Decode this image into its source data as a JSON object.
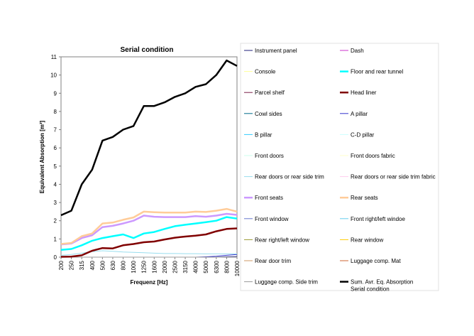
{
  "chart_data": {
    "type": "line",
    "title": "Serial condition",
    "xlabel": "Frequenz [Hz]",
    "ylabel": "Equivalent Absorption [m²]",
    "x": [
      "200",
      "250",
      "315",
      "400",
      "500",
      "630",
      "800",
      "1000",
      "1250",
      "1600",
      "2000",
      "2500",
      "3150",
      "4000",
      "5000",
      "6300",
      "8000",
      "10000"
    ],
    "ylim": [
      0,
      11
    ],
    "yticks": [
      "0",
      "1",
      "2",
      "3",
      "4",
      "5",
      "6",
      "7",
      "8",
      "9",
      "10",
      "11"
    ],
    "grid": false,
    "legend_position": "right",
    "series": [
      {
        "name": "Instrument panel",
        "color": "#1f1f7a",
        "width": 1,
        "values": [
          0,
          0,
          0,
          0,
          0,
          0,
          0,
          0,
          0,
          0,
          0,
          0,
          0,
          0,
          0,
          0,
          0.02,
          0.03
        ]
      },
      {
        "name": "Dash",
        "color": "#cc33cc",
        "width": 1,
        "values": [
          0,
          0,
          0,
          0,
          0,
          0,
          0,
          0,
          0,
          0,
          0,
          0,
          0,
          0,
          0,
          0,
          0,
          0
        ]
      },
      {
        "name": "Console",
        "color": "#ffff99",
        "width": 1,
        "values": [
          0,
          0,
          0,
          0,
          0,
          0,
          0,
          0,
          0,
          0,
          0,
          0,
          0,
          0,
          0,
          0,
          0,
          0
        ]
      },
      {
        "name": "Floor and rear tunnel",
        "color": "#00ffff",
        "width": 2.5,
        "values": [
          0.4,
          0.45,
          0.65,
          0.9,
          1.05,
          1.15,
          1.25,
          1.05,
          1.3,
          1.38,
          1.55,
          1.7,
          1.78,
          1.85,
          1.92,
          2.0,
          2.2,
          2.12
        ]
      },
      {
        "name": "Parcel shelf",
        "color": "#7a1f4a",
        "width": 1,
        "values": [
          0,
          0,
          0,
          0,
          0,
          0,
          0,
          0,
          0,
          0,
          0,
          0,
          0,
          0,
          0,
          0,
          0,
          0
        ]
      },
      {
        "name": "Head liner",
        "color": "#800000",
        "width": 2.5,
        "values": [
          0.02,
          0.03,
          0.1,
          0.35,
          0.5,
          0.48,
          0.65,
          0.72,
          0.82,
          0.86,
          0.97,
          1.07,
          1.13,
          1.18,
          1.25,
          1.42,
          1.55,
          1.58
        ]
      },
      {
        "name": "Cowl sides",
        "color": "#006a8a",
        "width": 1,
        "values": [
          0,
          0,
          0,
          0,
          0,
          0,
          0,
          0,
          0,
          0,
          0,
          0,
          0,
          0,
          0,
          0,
          0,
          0
        ]
      },
      {
        "name": "A pillar",
        "color": "#3333cc",
        "width": 1,
        "values": [
          0,
          0,
          0,
          0,
          0,
          0,
          0,
          0,
          0,
          0,
          0,
          0,
          0,
          0,
          0.02,
          0.05,
          0.1,
          0.15
        ]
      },
      {
        "name": "B pillar",
        "color": "#33ccff",
        "width": 1,
        "values": [
          0,
          0,
          0,
          0,
          0,
          0,
          0,
          0,
          0,
          0,
          0,
          0,
          0,
          0,
          0,
          0,
          0,
          0
        ]
      },
      {
        "name": "C-D pillar",
        "color": "#ccffff",
        "width": 1,
        "values": [
          0,
          0,
          0,
          0,
          0,
          0,
          0,
          0,
          0,
          0,
          0,
          0,
          0,
          0,
          0,
          0,
          0,
          0
        ]
      },
      {
        "name": "Front doors",
        "color": "#ccffee",
        "width": 1,
        "values": [
          0,
          0,
          0,
          0,
          0,
          0,
          0,
          0,
          0,
          0,
          0,
          0,
          0,
          0,
          0,
          0,
          0,
          0
        ]
      },
      {
        "name": "Front doors fabric",
        "color": "#ffffcc",
        "width": 1,
        "values": [
          0,
          0,
          0,
          0,
          0,
          0,
          0,
          0,
          0,
          0,
          0,
          0,
          0,
          0,
          0,
          0,
          0,
          0
        ]
      },
      {
        "name": "Rear doors or rear side trim",
        "color": "#99ddee",
        "width": 1,
        "values": [
          0.1,
          0.15,
          0.22,
          0.3,
          0.35,
          0.32,
          0.28,
          0.26,
          0.24,
          0.22,
          0.2,
          0.2,
          0.19,
          0.19,
          0.18,
          0.18,
          0.18,
          0.18
        ]
      },
      {
        "name": "Rear doors or rear side trim fabric",
        "color": "#ffccee",
        "width": 1,
        "values": [
          0,
          0,
          0,
          0,
          0,
          0,
          0,
          0,
          0,
          0,
          0,
          0,
          0,
          0,
          0,
          0,
          0,
          0
        ]
      },
      {
        "name": "Front seats",
        "color": "#cc99ff",
        "width": 2.5,
        "values": [
          0.7,
          0.75,
          1.05,
          1.2,
          1.65,
          1.72,
          1.85,
          2.0,
          2.28,
          2.22,
          2.2,
          2.2,
          2.2,
          2.25,
          2.22,
          2.28,
          2.38,
          2.32
        ]
      },
      {
        "name": "Rear seats",
        "color": "#ffcc99",
        "width": 2.5,
        "values": [
          0.72,
          0.78,
          1.15,
          1.3,
          1.85,
          1.9,
          2.05,
          2.18,
          2.5,
          2.47,
          2.45,
          2.45,
          2.45,
          2.5,
          2.48,
          2.55,
          2.65,
          2.5
        ]
      },
      {
        "name": "Front window",
        "color": "#6677cc",
        "width": 1,
        "values": [
          0,
          0,
          0,
          0,
          0,
          0,
          0,
          0,
          0,
          0,
          0,
          0,
          0,
          0,
          0,
          0,
          0,
          0
        ]
      },
      {
        "name": "Front right/left windoe",
        "color": "#66ccee",
        "width": 1,
        "values": [
          0,
          0,
          0,
          0,
          0,
          0,
          0,
          0,
          0,
          0,
          0,
          0,
          0,
          0,
          0,
          0,
          0,
          0
        ]
      },
      {
        "name": "Rear right/left window",
        "color": "#999933",
        "width": 1,
        "values": [
          0,
          0,
          0,
          0,
          0,
          0,
          0,
          0,
          0,
          0,
          0,
          0,
          0,
          0,
          0,
          0,
          0,
          0
        ]
      },
      {
        "name": "Rear window",
        "color": "#ffcc00",
        "width": 1,
        "values": [
          0,
          0,
          0,
          0,
          0,
          0,
          0,
          0,
          0,
          0,
          0,
          0,
          0,
          0,
          0,
          0,
          0,
          0
        ]
      },
      {
        "name": "Rear door trim",
        "color": "#cc9966",
        "width": 1,
        "values": [
          0,
          0,
          0,
          0,
          0,
          0,
          0,
          0,
          0,
          0,
          0,
          0,
          0,
          0,
          0,
          0,
          0,
          0
        ]
      },
      {
        "name": "Luggage comp. Mat",
        "color": "#cc6633",
        "width": 1,
        "values": [
          0,
          0,
          0,
          0,
          0,
          0,
          0,
          0,
          0,
          0,
          0,
          0,
          0,
          0,
          0,
          0,
          0,
          0
        ]
      },
      {
        "name": "Luggage comp. Side trim",
        "color": "#999999",
        "width": 1,
        "values": [
          0,
          0,
          0,
          0,
          0,
          0,
          0,
          0,
          0,
          0,
          0,
          0,
          0,
          0,
          0,
          0,
          0,
          0
        ]
      },
      {
        "name": "Sum. Avr. Eq. Absorption Serial condition",
        "color": "#000000",
        "width": 2.5,
        "values": [
          2.3,
          2.55,
          4.0,
          4.8,
          6.4,
          6.6,
          7.0,
          7.2,
          8.3,
          8.3,
          8.5,
          8.8,
          9.0,
          9.35,
          9.5,
          10.0,
          10.8,
          10.5
        ]
      }
    ]
  }
}
